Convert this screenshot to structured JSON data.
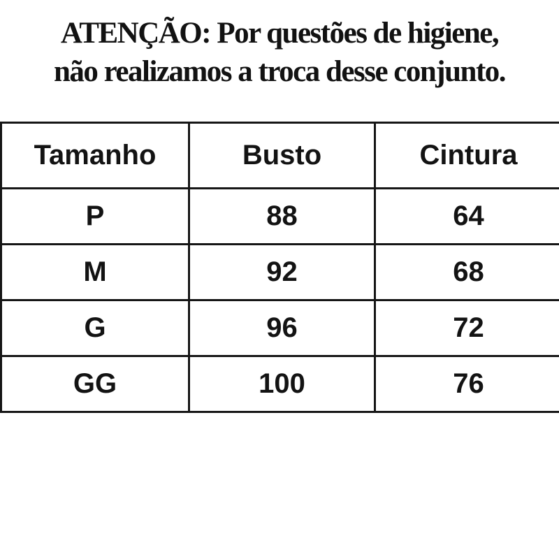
{
  "notice": {
    "line1": "ATENÇÃO: Por questões de higiene,",
    "line2": "não realizamos a troca desse conjunto."
  },
  "size_table": {
    "columns": [
      "Tamanho",
      "Busto",
      "Cintura"
    ],
    "rows": [
      {
        "tamanho": "P",
        "busto": "88",
        "cintura": "64"
      },
      {
        "tamanho": "M",
        "busto": "92",
        "cintura": "68"
      },
      {
        "tamanho": "G",
        "busto": "96",
        "cintura": "72"
      },
      {
        "tamanho": "GG",
        "busto": "100",
        "cintura": "76"
      }
    ]
  },
  "colors": {
    "background": "#ffffff",
    "text": "#121212",
    "table_border": "#161616"
  }
}
